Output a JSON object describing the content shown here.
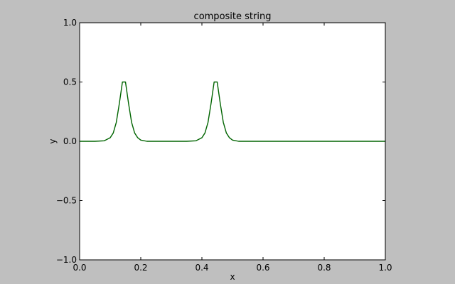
{
  "chart_data": {
    "type": "line",
    "title": "composite string",
    "xlabel": "x",
    "ylabel": "y",
    "xlim": [
      0.0,
      1.0
    ],
    "ylim": [
      -1.0,
      1.0
    ],
    "x_ticks": [
      0.0,
      0.2,
      0.4,
      0.6,
      0.8,
      1.0
    ],
    "x_tick_labels": [
      "0.0",
      "0.2",
      "0.4",
      "0.6",
      "0.8",
      "1.0"
    ],
    "y_ticks": [
      -1.0,
      -0.5,
      0.0,
      0.5,
      1.0
    ],
    "y_tick_labels": [
      "−1.0",
      "−0.5",
      "0.0",
      "0.5",
      "1.0"
    ],
    "grid": false,
    "series": [
      {
        "color": "#006400",
        "x": [
          0.0,
          0.05,
          0.08,
          0.1,
          0.11,
          0.12,
          0.13,
          0.14,
          0.15,
          0.16,
          0.17,
          0.18,
          0.19,
          0.2,
          0.22,
          0.25,
          0.35,
          0.38,
          0.4,
          0.41,
          0.42,
          0.43,
          0.44,
          0.45,
          0.46,
          0.47,
          0.48,
          0.49,
          0.5,
          0.52,
          0.55,
          0.7,
          1.0
        ],
        "y": [
          0.0,
          0.0,
          0.004,
          0.03,
          0.07,
          0.16,
          0.32,
          0.5,
          0.5,
          0.32,
          0.16,
          0.07,
          0.03,
          0.01,
          0.0,
          0.0,
          0.0,
          0.004,
          0.03,
          0.07,
          0.16,
          0.32,
          0.5,
          0.5,
          0.32,
          0.16,
          0.07,
          0.03,
          0.01,
          0.0,
          0.0,
          0.0,
          0.0
        ]
      }
    ]
  }
}
